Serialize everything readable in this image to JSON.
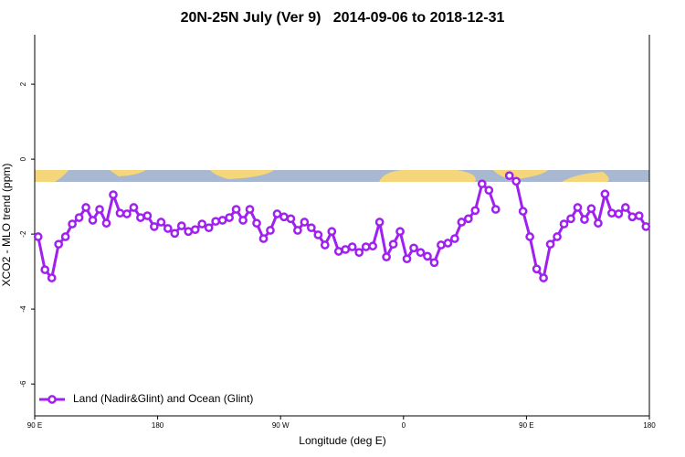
{
  "chart_data": {
    "type": "line",
    "title": "20N-25N July (Ver 9)   2014-09-06 to 2018-12-31",
    "x_label": "Longitude (deg E)",
    "y_label": "XCO2 - MLO trend (ppm)",
    "xlim": [
      90,
      540
    ],
    "ylim": [
      -6.85,
      3.32
    ],
    "xticks": [
      {
        "value": 90,
        "label": "90 E"
      },
      180,
      {
        "value": 270,
        "label": "90 W"
      },
      {
        "value": 360,
        "label": "0"
      },
      {
        "value": 450,
        "label": "90 E"
      },
      {
        "value": 540,
        "label": "180"
      }
    ],
    "yticks": [
      2,
      0,
      -2,
      -4,
      -6
    ],
    "legend": "bottom left",
    "grid": false,
    "x": [
      92.5,
      97.5,
      102.5,
      107.5,
      112.5,
      117.5,
      122.5,
      127.5,
      132.5,
      137.5,
      142.5,
      147.5,
      152.5,
      157.5,
      162.5,
      167.5,
      172.5,
      177.5,
      182.5,
      187.5,
      192.5,
      197.5,
      202.5,
      207.5,
      212.5,
      217.5,
      222.5,
      227.5,
      232.5,
      237.5,
      242.5,
      247.5,
      252.5,
      257.5,
      262.5,
      267.5,
      272.5,
      277.5,
      282.5,
      287.5,
      292.5,
      297.5,
      302.5,
      307.5,
      312.5,
      317.5,
      322.5,
      327.5,
      332.5,
      337.5,
      342.5,
      347.5,
      352.5,
      357.5,
      362.5,
      367.5,
      372.5,
      377.5,
      382.5,
      387.5,
      392.5,
      397.5,
      402.5,
      407.5,
      412.5,
      417.5,
      422.5,
      427.5,
      432.5,
      437.5,
      442.5,
      447.5,
      452.5,
      457.5,
      462.5,
      467.5,
      472.5,
      477.5,
      482.5,
      487.5,
      492.5,
      497.5,
      502.5,
      507.5,
      512.5,
      517.5,
      522.5,
      527.5,
      532.5,
      537.5
    ],
    "series": [
      {
        "name": "Land (Nadir&Glint) and Ocean (Glint)",
        "color": "#a020f0",
        "values": [
          -2.07,
          -2.95,
          -3.17,
          -2.27,
          -2.07,
          -1.73,
          -1.56,
          -1.29,
          -1.63,
          -1.34,
          -1.71,
          -0.95,
          -1.44,
          -1.46,
          -1.29,
          -1.56,
          -1.51,
          -1.8,
          -1.68,
          -1.85,
          -1.98,
          -1.78,
          -1.93,
          -1.88,
          -1.73,
          -1.83,
          -1.66,
          -1.63,
          -1.56,
          -1.34,
          -1.63,
          -1.34,
          -1.71,
          -2.12,
          -1.9,
          -1.46,
          -1.54,
          -1.59,
          -1.9,
          -1.68,
          -1.83,
          -2.02,
          -2.29,
          -1.93,
          -2.46,
          -2.41,
          -2.34,
          -2.49,
          -2.34,
          -2.32,
          -1.68,
          -2.61,
          -2.27,
          -1.93,
          -2.66,
          -2.37,
          -2.49,
          -2.59,
          -2.76,
          -2.29,
          -2.24,
          -2.12,
          -1.68,
          -1.59,
          -1.37,
          -0.66,
          -0.83,
          -1.34,
          null,
          -0.44,
          -0.59,
          -1.39,
          -2.07,
          -2.93,
          -3.17,
          -2.27,
          -2.07,
          -1.73,
          -1.59,
          -1.29,
          -1.61,
          -1.32,
          -1.71,
          -0.93,
          -1.44,
          -1.46,
          -1.29,
          -1.54,
          -1.51,
          -1.8
        ]
      }
    ]
  }
}
